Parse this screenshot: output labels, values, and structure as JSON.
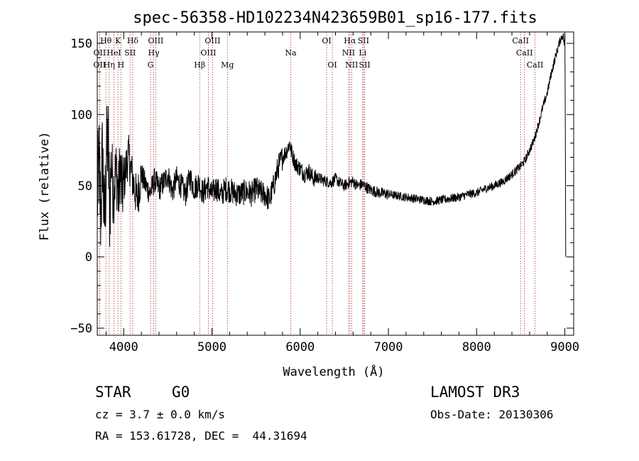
{
  "chart_data": {
    "type": "line",
    "title": "spec-56358-HD102234N423659B01_sp16-177.fits",
    "xlabel": "Wavelength (Å)",
    "ylabel": "Flux (relative)",
    "xlim": [
      3700,
      9100
    ],
    "ylim": [
      -55,
      158
    ],
    "xticks": [
      4000,
      5000,
      6000,
      7000,
      8000,
      9000
    ],
    "yticks": [
      -50,
      0,
      50,
      100,
      150
    ],
    "grid": false,
    "series": [
      {
        "name": "flux",
        "x": [
          3700,
          3720,
          3740,
          3760,
          3780,
          3800,
          3820,
          3840,
          3860,
          3880,
          3900,
          3920,
          3940,
          3960,
          3980,
          4000,
          4050,
          4100,
          4150,
          4200,
          4250,
          4300,
          4350,
          4400,
          4450,
          4500,
          4550,
          4600,
          4650,
          4700,
          4750,
          4800,
          4850,
          4900,
          4950,
          5000,
          5050,
          5100,
          5150,
          5200,
          5250,
          5300,
          5350,
          5400,
          5450,
          5500,
          5550,
          5600,
          5650,
          5700,
          5750,
          5800,
          5850,
          5880,
          5900,
          5920,
          5950,
          6000,
          6050,
          6100,
          6150,
          6200,
          6250,
          6300,
          6350,
          6400,
          6450,
          6500,
          6550,
          6600,
          6650,
          6700,
          6750,
          6800,
          6900,
          7000,
          7100,
          7200,
          7300,
          7400,
          7500,
          7600,
          7700,
          7800,
          7900,
          8000,
          8100,
          8200,
          8300,
          8400,
          8500,
          8550,
          8600,
          8650,
          8700,
          8750,
          8800,
          8850,
          8900,
          8950,
          8980,
          9000,
          9010
        ],
        "y": [
          40,
          65,
          30,
          75,
          20,
          60,
          85,
          35,
          70,
          45,
          55,
          60,
          40,
          65,
          45,
          52,
          72,
          55,
          40,
          58,
          50,
          45,
          54,
          48,
          52,
          58,
          46,
          55,
          50,
          44,
          56,
          48,
          52,
          45,
          50,
          44,
          49,
          43,
          48,
          47,
          45,
          44,
          45,
          46,
          44,
          48,
          45,
          44,
          40,
          50,
          63,
          70,
          75,
          80,
          74,
          70,
          65,
          62,
          58,
          60,
          55,
          56,
          54,
          53,
          52,
          55,
          52,
          50,
          52,
          53,
          50,
          51,
          49,
          47,
          45,
          44,
          43,
          42,
          41,
          40,
          39,
          40,
          41,
          42,
          44,
          45,
          48,
          50,
          53,
          58,
          64,
          68,
          75,
          82,
          93,
          105,
          115,
          130,
          142,
          153,
          156,
          146,
          0
        ]
      }
    ],
    "annotations": [
      {
        "label": "Hθ",
        "x": 3798,
        "row": 1
      },
      {
        "label": "K",
        "x": 3934,
        "row": 1
      },
      {
        "label": "Hδ",
        "x": 4102,
        "row": 1
      },
      {
        "label": "OIII",
        "x": 4363,
        "row": 1
      },
      {
        "label": "OIII",
        "x": 5007,
        "row": 1
      },
      {
        "label": "OI",
        "x": 6300,
        "row": 1
      },
      {
        "label": "Hα",
        "x": 6563,
        "row": 1
      },
      {
        "label": "SII",
        "x": 6717,
        "row": 1
      },
      {
        "label": "CaII",
        "x": 8498,
        "row": 1
      },
      {
        "label": "OII",
        "x": 3727,
        "row": 2
      },
      {
        "label": "HeI",
        "x": 3889,
        "row": 2
      },
      {
        "label": "SII",
        "x": 4072,
        "row": 2
      },
      {
        "label": "Hγ",
        "x": 4340,
        "row": 2
      },
      {
        "label": "OIII",
        "x": 4959,
        "row": 2
      },
      {
        "label": "Na",
        "x": 5893,
        "row": 2
      },
      {
        "label": "NII",
        "x": 6548,
        "row": 2
      },
      {
        "label": "Li",
        "x": 6708,
        "row": 2
      },
      {
        "label": "CaII",
        "x": 8542,
        "row": 2
      },
      {
        "label": "OII",
        "x": 3726,
        "row": 3
      },
      {
        "label": "Hη",
        "x": 3835,
        "row": 3
      },
      {
        "label": "H",
        "x": 3968,
        "row": 3
      },
      {
        "label": "G",
        "x": 4304,
        "row": 3
      },
      {
        "label": "Hβ",
        "x": 4861,
        "row": 3
      },
      {
        "label": "Mg",
        "x": 5175,
        "row": 3
      },
      {
        "label": "OI",
        "x": 6364,
        "row": 3
      },
      {
        "label": "NII",
        "x": 6583,
        "row": 3
      },
      {
        "label": "SII",
        "x": 6731,
        "row": 3
      },
      {
        "label": "CaII",
        "x": 8662,
        "row": 3
      }
    ]
  },
  "info": {
    "class": "STAR",
    "subclass": "G0",
    "survey": "LAMOST DR3",
    "cz": "cz = 3.7 ± 0.0 km/s",
    "obs_date": "Obs-Date: 20130306",
    "coords": "RA = 153.61728, DEC =  44.31694"
  },
  "colors": {
    "line": "#000000",
    "marker": "#b03030"
  }
}
